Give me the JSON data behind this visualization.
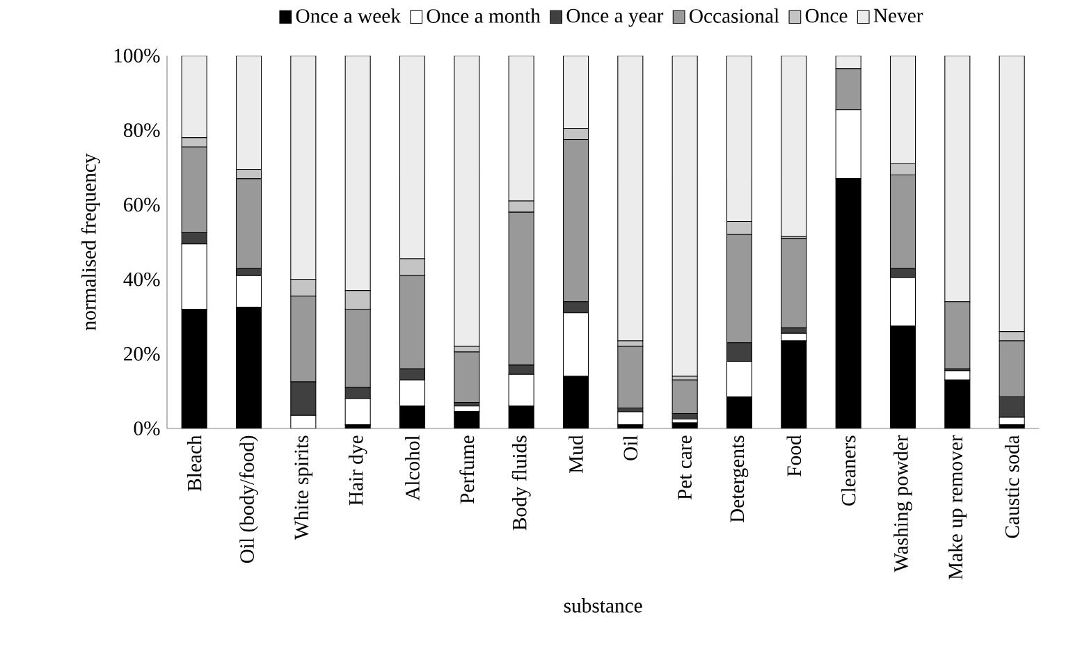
{
  "chart_data": {
    "type": "bar",
    "stacked": true,
    "xlabel": "substance",
    "ylabel": "normalised frequency",
    "categories": [
      "Bleach",
      "Oil (body/food)",
      "White spirits",
      "Hair dye",
      "Alcohol",
      "Perfume",
      "Body fluids",
      "Mud",
      "Oil",
      "Pet care",
      "Detergents",
      "Food",
      "Cleaners",
      "Washing powder",
      "Make up remover",
      "Caustic soda"
    ],
    "series": [
      {
        "name": "Once a week",
        "color": "#000000",
        "values": [
          32,
          32.5,
          0,
          1,
          6,
          4.5,
          6,
          14,
          1,
          1.5,
          8.5,
          23.5,
          67,
          27.5,
          13,
          1
        ]
      },
      {
        "name": "Once a month",
        "color": "#ffffff",
        "values": [
          17.5,
          8.5,
          3.5,
          7,
          7,
          1.5,
          8.5,
          17,
          3.5,
          1,
          9.5,
          2,
          18.5,
          13,
          2.5,
          2
        ]
      },
      {
        "name": "Once a year",
        "color": "#404040",
        "values": [
          3,
          2,
          9,
          3,
          3,
          1,
          2.5,
          3,
          1,
          1.5,
          5,
          1.5,
          0,
          2.5,
          0.5,
          5.5
        ]
      },
      {
        "name": "Occasional",
        "color": "#999999",
        "values": [
          23,
          24,
          23,
          21,
          25,
          13.5,
          41,
          43.5,
          16.5,
          9,
          29,
          24,
          11,
          25,
          18,
          15
        ]
      },
      {
        "name": "Once",
        "color": "#c4c4c4",
        "values": [
          2.5,
          2.5,
          4.5,
          5,
          4.5,
          1.5,
          3,
          3,
          1.5,
          1,
          3.5,
          0.5,
          0,
          3,
          0,
          2.5
        ]
      },
      {
        "name": "Never",
        "color": "#ececec",
        "values": [
          22,
          30.5,
          60,
          63,
          54.5,
          78,
          39,
          19.5,
          76.5,
          86,
          44.5,
          48.5,
          3.5,
          29,
          66,
          74
        ]
      }
    ],
    "ylim": [
      0,
      100
    ],
    "yticks": [
      {
        "value": 0,
        "label": "0%"
      },
      {
        "value": 20,
        "label": "20%"
      },
      {
        "value": 40,
        "label": "40%"
      },
      {
        "value": 60,
        "label": "60%"
      },
      {
        "value": 80,
        "label": "80%"
      },
      {
        "value": 100,
        "label": "100%"
      }
    ],
    "legend": "top"
  }
}
